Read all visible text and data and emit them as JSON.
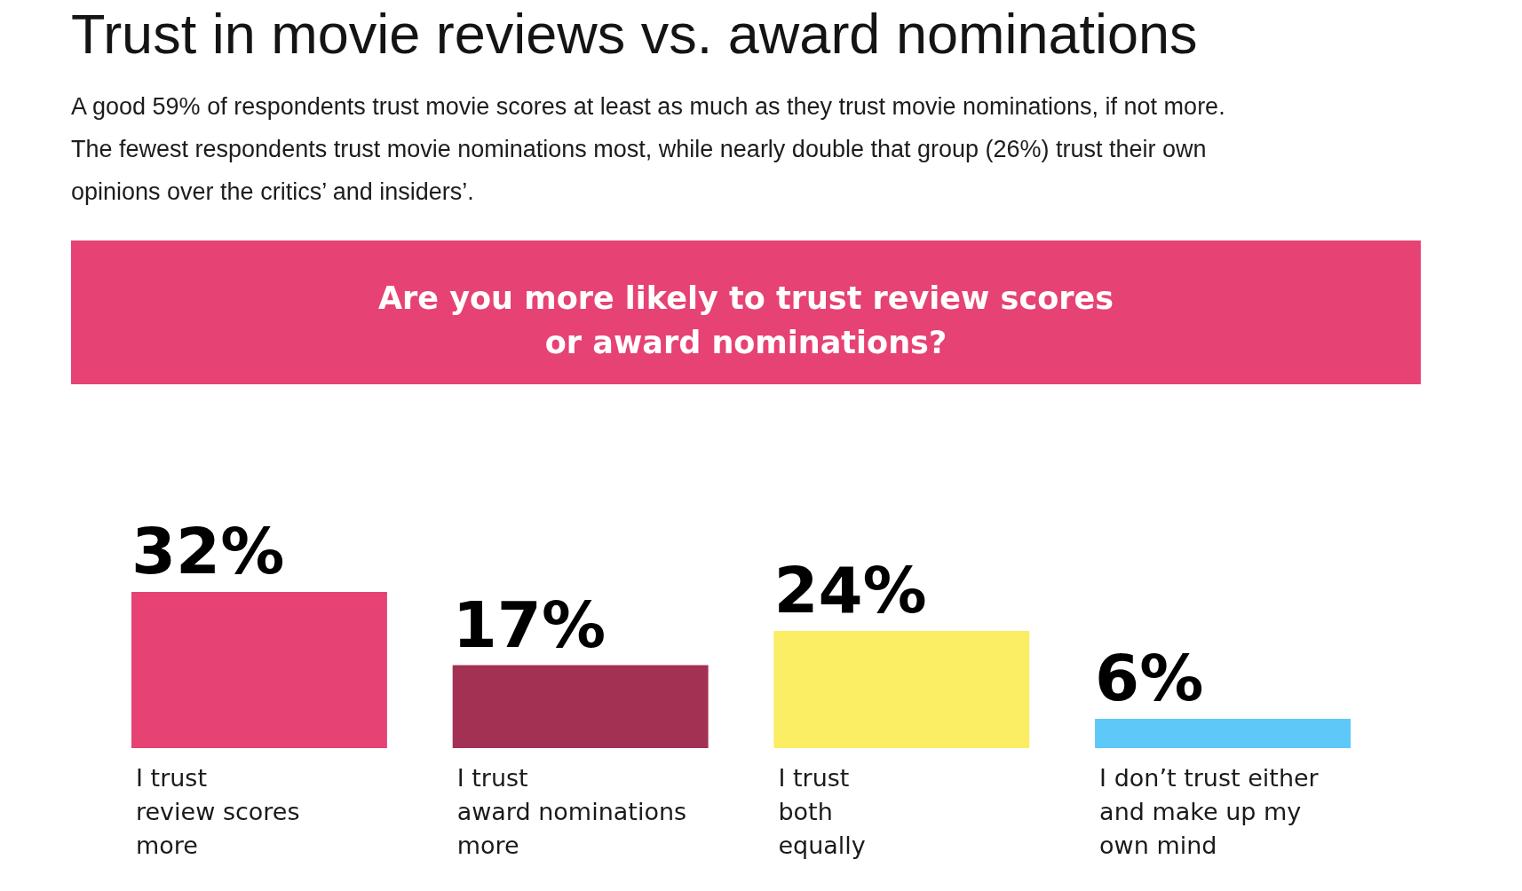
{
  "chart_data": {
    "type": "bar",
    "title": "Trust in movie reviews vs. award nominations",
    "subtitle": "A good 59% of respondents trust movie scores at least as much as they trust movie nominations, if not more. The fewest respondents trust movie nominations most, while nearly double that group (26%) trust their own opinions over the critics’ and insiders’.",
    "annotations": [
      "Are you more likely to trust review scores or award nominations?"
    ],
    "categories": [
      "I trust\nreview scores\nmore",
      "I trust\naward nominations\nmore",
      "I trust\nboth\nequally",
      "I don’t trust either\nand make up my\nown mind"
    ],
    "values": [
      32,
      17,
      24,
      6
    ],
    "colors": [
      "#e64273",
      "#a33153",
      "#fbed64",
      "#5ec8f8"
    ],
    "value_labels": [
      "32%",
      "17%",
      "24%",
      "6%"
    ]
  }
}
